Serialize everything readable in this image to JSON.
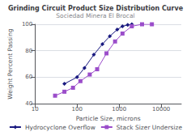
{
  "chart_data": {
    "type": "line",
    "title": "Grinding Circuit Product Size Distribution Curve",
    "subtitle": "Sociedad Minera El Brocal",
    "xlabel": "Particle Size, microns",
    "ylabel": "Weight Percent Passing",
    "log": "x",
    "xlim": [
      10,
      30000
    ],
    "xticks": [
      10,
      100,
      1000,
      10000
    ],
    "ylim": [
      40,
      100
    ],
    "yticks": [
      40,
      60,
      80,
      100
    ],
    "grid": true,
    "legend": "bottom",
    "series": [
      {
        "name": "Hydrocyclone Overflow",
        "color": "#1a1a80",
        "marker": "diamond",
        "x": [
          50,
          100,
          150,
          250,
          400,
          600,
          900,
          1200,
          1600,
          2000
        ],
        "values": [
          55,
          60,
          67,
          77,
          85,
          91,
          96,
          98.5,
          99.5,
          100
        ]
      },
      {
        "name": "Stack Sizer Undersize",
        "color": "#9b4dca",
        "marker": "square",
        "x": [
          30,
          50,
          80,
          120,
          200,
          300,
          500,
          800,
          1200,
          2000,
          3500,
          6000
        ],
        "values": [
          46,
          49,
          52,
          57,
          62,
          66,
          78,
          87,
          93,
          98.5,
          100,
          100
        ]
      }
    ]
  }
}
